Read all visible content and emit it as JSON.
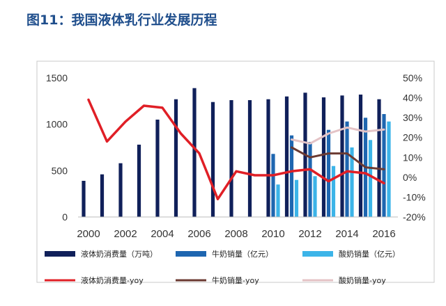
{
  "figure_title": "图11：我国液体乳行业发展历程",
  "chart_data": {
    "type": "bar",
    "title": "图11：我国液体乳行业发展历程",
    "x": [
      2000,
      2001,
      2002,
      2003,
      2004,
      2005,
      2006,
      2007,
      2008,
      2009,
      2010,
      2011,
      2012,
      2013,
      2014,
      2015,
      2016
    ],
    "x_tick_labels": [
      "2000",
      "2002",
      "2004",
      "2006",
      "2008",
      "2010",
      "2012",
      "2014",
      "2016"
    ],
    "y_left_ticks": [
      "1500",
      "1000",
      "500",
      "0"
    ],
    "y_right_ticks": [
      "50%",
      "40%",
      "30%",
      "20%",
      "10%",
      "0%",
      "-10%",
      "-20%"
    ],
    "ylim_left": [
      0,
      1500
    ],
    "ylim_right": [
      -20,
      50
    ],
    "bar_series": [
      {
        "name": "液体奶消费量（万吨）",
        "color": "#10205a",
        "values": [
          390,
          460,
          580,
          780,
          1050,
          1270,
          1390,
          1240,
          1260,
          1260,
          1270,
          1300,
          1340,
          1290,
          1310,
          1320,
          1270
        ]
      },
      {
        "name": "牛奶销量（亿元）",
        "color": "#1e66b0",
        "values": [
          null,
          null,
          null,
          null,
          null,
          null,
          null,
          null,
          null,
          null,
          680,
          880,
          810,
          940,
          1030,
          1070,
          1110
        ]
      },
      {
        "name": "酸奶销量（亿元）",
        "color": "#3cb4e8",
        "values": [
          null,
          null,
          null,
          null,
          null,
          null,
          null,
          null,
          null,
          null,
          350,
          400,
          440,
          550,
          750,
          830,
          1030
        ]
      }
    ],
    "line_series": [
      {
        "name": "液体奶消费量-yoy",
        "color": "#e01f26",
        "width": 3.5,
        "values": [
          39,
          18,
          28,
          36,
          35,
          22,
          12,
          -11,
          3,
          1,
          1,
          3,
          4,
          -2,
          3,
          2,
          -3
        ]
      },
      {
        "name": "牛奶销量-yoy",
        "color": "#6b3a32",
        "width": 3,
        "values": [
          null,
          null,
          null,
          null,
          null,
          null,
          null,
          null,
          null,
          null,
          null,
          15,
          10,
          12,
          12,
          5,
          4
        ]
      },
      {
        "name": "酸奶销量-yoy",
        "color": "#e4c3c6",
        "width": 3,
        "values": [
          null,
          null,
          null,
          null,
          null,
          null,
          null,
          null,
          null,
          null,
          null,
          19,
          17,
          22,
          25,
          23,
          24
        ]
      }
    ],
    "legend_position": "bottom"
  }
}
